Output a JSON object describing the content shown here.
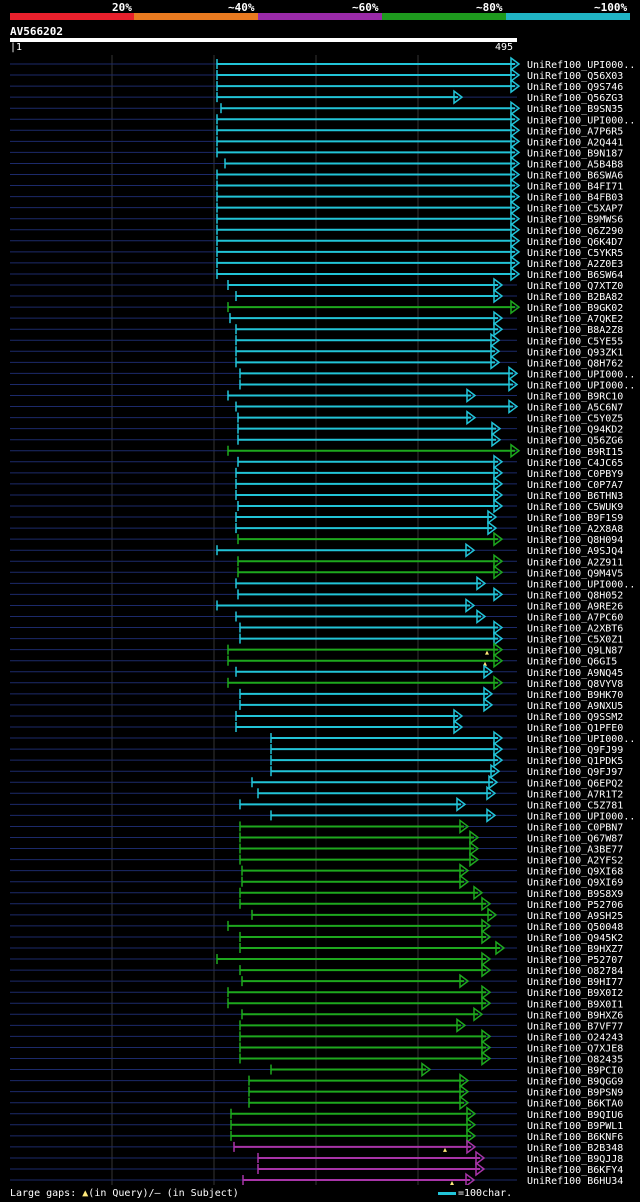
{
  "legend": {
    "labels": [
      "20%",
      "~40%",
      "~60%",
      "~80%",
      "~100%"
    ],
    "colors": [
      "#e8202c",
      "#e87a20",
      "#9a2aa8",
      "#1e9a1e",
      "#20b4c4"
    ]
  },
  "query": {
    "id": "AV566202",
    "start": "1",
    "end": "495"
  },
  "footer": {
    "gaps_label": "Large gaps:",
    "in_query": "(in Query)/",
    "in_subject": "– (in Subject)",
    "scale": "=100char."
  },
  "hits": [
    {
      "label": "UniRef100_UPI000..",
      "start": 217,
      "end": 517,
      "c": "cyan"
    },
    {
      "label": "UniRef100_Q56X03",
      "start": 217,
      "end": 517,
      "c": "cyan"
    },
    {
      "label": "UniRef100_Q9S746",
      "start": 217,
      "end": 517,
      "c": "cyan"
    },
    {
      "label": "UniRef100_Q56ZG3",
      "start": 217,
      "end": 460,
      "c": "cyan"
    },
    {
      "label": "UniRef100_B9SN35",
      "start": 221,
      "end": 517,
      "c": "cyan"
    },
    {
      "label": "UniRef100_UPI000..",
      "start": 217,
      "end": 517,
      "c": "cyan"
    },
    {
      "label": "UniRef100_A7P6R5",
      "start": 217,
      "end": 517,
      "c": "cyan"
    },
    {
      "label": "UniRef100_A2Q441",
      "start": 217,
      "end": 517,
      "c": "cyan"
    },
    {
      "label": "UniRef100_B9N187",
      "start": 217,
      "end": 517,
      "c": "cyan"
    },
    {
      "label": "UniRef100_A5B4B8",
      "start": 225,
      "end": 517,
      "c": "cyan"
    },
    {
      "label": "UniRef100_B6SWA6",
      "start": 217,
      "end": 517,
      "c": "cyan"
    },
    {
      "label": "UniRef100_B4FI71",
      "start": 217,
      "end": 517,
      "c": "cyan"
    },
    {
      "label": "UniRef100_B4FB03",
      "start": 217,
      "end": 517,
      "c": "cyan"
    },
    {
      "label": "UniRef100_C5XAP7",
      "start": 217,
      "end": 517,
      "c": "cyan"
    },
    {
      "label": "UniRef100_B9MWS6",
      "start": 217,
      "end": 517,
      "c": "cyan"
    },
    {
      "label": "UniRef100_Q6Z290",
      "start": 217,
      "end": 517,
      "c": "cyan"
    },
    {
      "label": "UniRef100_Q6K4D7",
      "start": 217,
      "end": 517,
      "c": "cyan"
    },
    {
      "label": "UniRef100_C5YKR5",
      "start": 217,
      "end": 517,
      "c": "cyan"
    },
    {
      "label": "UniRef100_A2Z0E3",
      "start": 217,
      "end": 517,
      "c": "cyan"
    },
    {
      "label": "UniRef100_B6SW64",
      "start": 217,
      "end": 517,
      "c": "cyan"
    },
    {
      "label": "UniRef100_Q7XTZ0",
      "start": 228,
      "end": 500,
      "c": "cyan"
    },
    {
      "label": "UniRef100_B2BA82",
      "start": 236,
      "end": 500,
      "c": "cyan"
    },
    {
      "label": "UniRef100_B9GK02",
      "start": 228,
      "end": 517,
      "c": "green"
    },
    {
      "label": "UniRef100_A7QKE2",
      "start": 230,
      "end": 500,
      "c": "cyan"
    },
    {
      "label": "UniRef100_B8A2Z8",
      "start": 236,
      "end": 500,
      "c": "cyan"
    },
    {
      "label": "UniRef100_C5YE55",
      "start": 236,
      "end": 497,
      "c": "cyan"
    },
    {
      "label": "UniRef100_Q93ZK1",
      "start": 236,
      "end": 497,
      "c": "cyan"
    },
    {
      "label": "UniRef100_Q8H762",
      "start": 236,
      "end": 497,
      "c": "cyan"
    },
    {
      "label": "UniRef100_UPI000..",
      "start": 240,
      "end": 515,
      "c": "cyan"
    },
    {
      "label": "UniRef100_UPI000..",
      "start": 240,
      "end": 515,
      "c": "cyan"
    },
    {
      "label": "UniRef100_B9RC10",
      "start": 228,
      "end": 473,
      "c": "cyan"
    },
    {
      "label": "UniRef100_A5C6N7",
      "start": 236,
      "end": 515,
      "c": "cyan"
    },
    {
      "label": "UniRef100_C5Y0Z5",
      "start": 238,
      "end": 473,
      "c": "cyan"
    },
    {
      "label": "UniRef100_Q94KD2",
      "start": 238,
      "end": 498,
      "c": "cyan"
    },
    {
      "label": "UniRef100_Q56ZG6",
      "start": 238,
      "end": 498,
      "c": "cyan"
    },
    {
      "label": "UniRef100_B9RI15",
      "start": 228,
      "end": 517,
      "c": "green"
    },
    {
      "label": "UniRef100_C4JC65",
      "start": 238,
      "end": 500,
      "c": "cyan"
    },
    {
      "label": "UniRef100_C0PBY9",
      "start": 236,
      "end": 500,
      "c": "cyan"
    },
    {
      "label": "UniRef100_C0P7A7",
      "start": 236,
      "end": 500,
      "c": "cyan"
    },
    {
      "label": "UniRef100_B6THN3",
      "start": 236,
      "end": 500,
      "c": "cyan"
    },
    {
      "label": "UniRef100_C5WUK9",
      "start": 238,
      "end": 500,
      "c": "cyan"
    },
    {
      "label": "UniRef100_B9F1S9",
      "start": 236,
      "end": 494,
      "c": "cyan"
    },
    {
      "label": "UniRef100_A2X8A8",
      "start": 236,
      "end": 494,
      "c": "cyan"
    },
    {
      "label": "UniRef100_Q8H094",
      "start": 238,
      "end": 500,
      "c": "green"
    },
    {
      "label": "UniRef100_A9SJQ4",
      "start": 217,
      "end": 472,
      "c": "cyan"
    },
    {
      "label": "UniRef100_A2Z911",
      "start": 238,
      "end": 500,
      "c": "green"
    },
    {
      "label": "UniRef100_Q9M4V5",
      "start": 238,
      "end": 500,
      "c": "green"
    },
    {
      "label": "UniRef100_UPI000..",
      "start": 236,
      "end": 483,
      "c": "cyan"
    },
    {
      "label": "UniRef100_Q8H052",
      "start": 238,
      "end": 500,
      "c": "cyan"
    },
    {
      "label": "UniRef100_A9RE26",
      "start": 217,
      "end": 472,
      "c": "cyan"
    },
    {
      "label": "UniRef100_A7PC60",
      "start": 236,
      "end": 483,
      "c": "cyan"
    },
    {
      "label": "UniRef100_A2XBT6",
      "start": 240,
      "end": 500,
      "c": "cyan"
    },
    {
      "label": "UniRef100_C5X0Z1",
      "start": 240,
      "end": 500,
      "c": "cyan"
    },
    {
      "label": "UniRef100_Q9LN87",
      "start": 228,
      "end": 500,
      "c": "green",
      "mark": 487
    },
    {
      "label": "UniRef100_Q6GI5",
      "start": 228,
      "end": 500,
      "c": "green",
      "mark": 485
    },
    {
      "label": "UniRef100_A9NQ45",
      "start": 236,
      "end": 490,
      "c": "cyan"
    },
    {
      "label": "UniRef100_Q8VYV8",
      "start": 228,
      "end": 500,
      "c": "green"
    },
    {
      "label": "UniRef100_B9HK70",
      "start": 240,
      "end": 490,
      "c": "cyan"
    },
    {
      "label": "UniRef100_A9NXU5",
      "start": 240,
      "end": 490,
      "c": "cyan"
    },
    {
      "label": "UniRef100_Q9SSM2",
      "start": 236,
      "end": 460,
      "c": "cyan"
    },
    {
      "label": "UniRef100_Q1PFE0",
      "start": 236,
      "end": 460,
      "c": "cyan"
    },
    {
      "label": "UniRef100_UPI000..",
      "start": 271,
      "end": 500,
      "c": "cyan"
    },
    {
      "label": "UniRef100_Q9FJ99",
      "start": 271,
      "end": 500,
      "c": "cyan"
    },
    {
      "label": "UniRef100_Q1PDK5",
      "start": 271,
      "end": 500,
      "c": "cyan"
    },
    {
      "label": "UniRef100_Q9FJ97",
      "start": 271,
      "end": 497,
      "c": "cyan"
    },
    {
      "label": "UniRef100_Q6EPQ2",
      "start": 252,
      "end": 495,
      "c": "cyan"
    },
    {
      "label": "UniRef100_A7R1T2",
      "start": 258,
      "end": 493,
      "c": "cyan"
    },
    {
      "label": "UniRef100_C5Z781",
      "start": 240,
      "end": 463,
      "c": "cyan"
    },
    {
      "label": "UniRef100_UPI000..",
      "start": 271,
      "end": 493,
      "c": "cyan"
    },
    {
      "label": "UniRef100_C0PBN7",
      "start": 240,
      "end": 466,
      "c": "green"
    },
    {
      "label": "UniRef100_Q67W87",
      "start": 240,
      "end": 476,
      "c": "green"
    },
    {
      "label": "UniRef100_A3BE77",
      "start": 240,
      "end": 476,
      "c": "green"
    },
    {
      "label": "UniRef100_A2YFS2",
      "start": 240,
      "end": 476,
      "c": "green"
    },
    {
      "label": "UniRef100_Q9XI68",
      "start": 242,
      "end": 466,
      "c": "green"
    },
    {
      "label": "UniRef100_Q9XI69",
      "start": 242,
      "end": 466,
      "c": "green"
    },
    {
      "label": "UniRef100_B9S8X9",
      "start": 240,
      "end": 480,
      "c": "green"
    },
    {
      "label": "UniRef100_P52706",
      "start": 240,
      "end": 488,
      "c": "green"
    },
    {
      "label": "UniRef100_A9SH25",
      "start": 252,
      "end": 494,
      "c": "green"
    },
    {
      "label": "UniRef100_Q50048",
      "start": 228,
      "end": 488,
      "c": "green"
    },
    {
      "label": "UniRef100_Q945K2",
      "start": 240,
      "end": 488,
      "c": "green"
    },
    {
      "label": "UniRef100_B9HXZ7",
      "start": 240,
      "end": 502,
      "c": "green"
    },
    {
      "label": "UniRef100_P52707",
      "start": 217,
      "end": 488,
      "c": "green"
    },
    {
      "label": "UniRef100_O82784",
      "start": 240,
      "end": 488,
      "c": "green"
    },
    {
      "label": "UniRef100_B9HI77",
      "start": 242,
      "end": 466,
      "c": "green"
    },
    {
      "label": "UniRef100_B9X0I2",
      "start": 228,
      "end": 488,
      "c": "green"
    },
    {
      "label": "UniRef100_B9X0I1",
      "start": 228,
      "end": 488,
      "c": "green"
    },
    {
      "label": "UniRef100_B9HXZ6",
      "start": 242,
      "end": 480,
      "c": "green"
    },
    {
      "label": "UniRef100_B7VF77",
      "start": 240,
      "end": 463,
      "c": "green"
    },
    {
      "label": "UniRef100_O24243",
      "start": 240,
      "end": 488,
      "c": "green"
    },
    {
      "label": "UniRef100_Q7XJE8",
      "start": 240,
      "end": 488,
      "c": "green"
    },
    {
      "label": "UniRef100_O82435",
      "start": 240,
      "end": 488,
      "c": "green"
    },
    {
      "label": "UniRef100_B9PCI0",
      "start": 271,
      "end": 428,
      "c": "green"
    },
    {
      "label": "UniRef100_B9QGG9",
      "start": 249,
      "end": 466,
      "c": "green"
    },
    {
      "label": "UniRef100_B9PSN9",
      "start": 249,
      "end": 466,
      "c": "green"
    },
    {
      "label": "UniRef100_B6KTA0",
      "start": 249,
      "end": 466,
      "c": "green"
    },
    {
      "label": "UniRef100_B9QIU6",
      "start": 231,
      "end": 473,
      "c": "green"
    },
    {
      "label": "UniRef100_B9PWL1",
      "start": 231,
      "end": 473,
      "c": "green"
    },
    {
      "label": "UniRef100_B6KNF6",
      "start": 231,
      "end": 473,
      "c": "green"
    },
    {
      "label": "UniRef100_B2B348",
      "start": 234,
      "end": 473,
      "c": "purple",
      "mark": 445
    },
    {
      "label": "UniRef100_B9QJJ8",
      "start": 258,
      "end": 482,
      "c": "purple"
    },
    {
      "label": "UniRef100_B6KFY4",
      "start": 258,
      "end": 482,
      "c": "purple"
    },
    {
      "label": "UniRef100_B6HU34",
      "start": 243,
      "end": 472,
      "c": "purple",
      "mark": 452
    }
  ]
}
